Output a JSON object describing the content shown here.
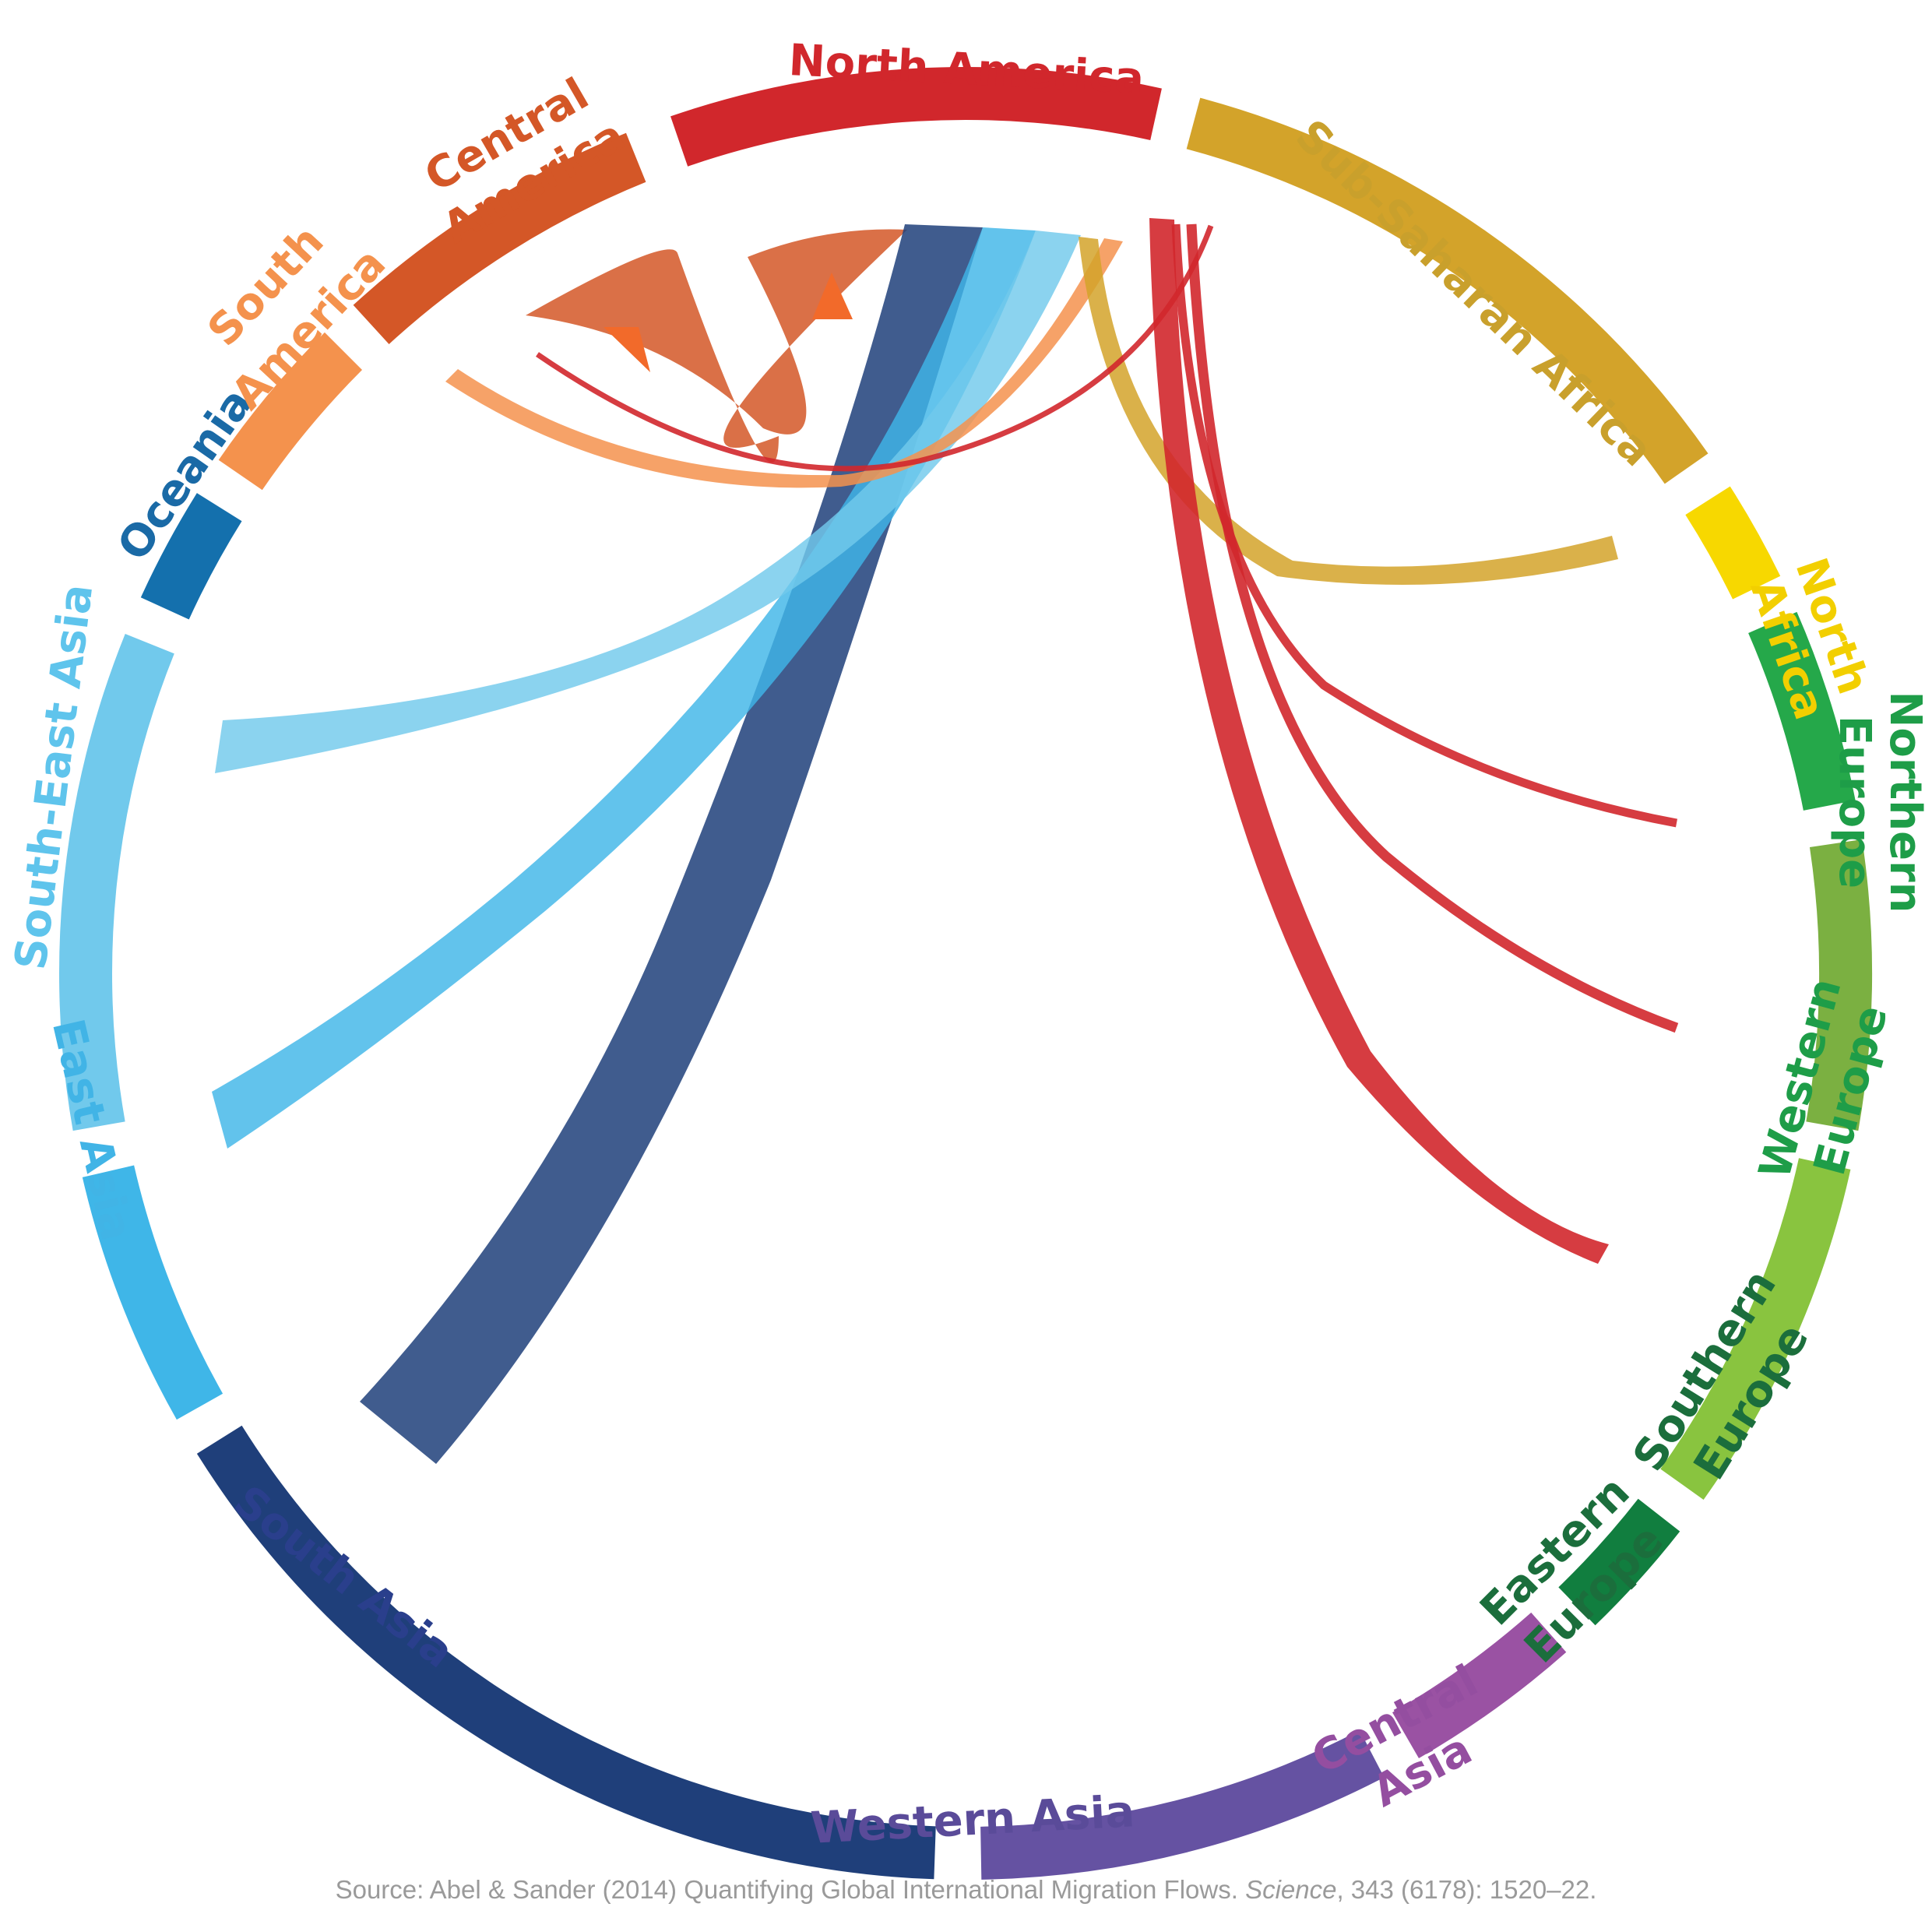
{
  "diagram": {
    "type": "chord",
    "regions": [
      {
        "id": "north-america",
        "label": "North America",
        "color": "#d1272c"
      },
      {
        "id": "sub-saharan-africa",
        "label": "Sub-Saharan Africa",
        "color": "#d3a32a"
      },
      {
        "id": "north-africa",
        "label": "North Africa",
        "color": "#f7d800"
      },
      {
        "id": "northern-europe",
        "label": "Northern Europe",
        "color": "#25a84a"
      },
      {
        "id": "western-europe",
        "label": "Western Europe",
        "color": "#7bb041"
      },
      {
        "id": "southern-europe",
        "label": "Southern Europe",
        "color": "#89c43f"
      },
      {
        "id": "eastern-europe",
        "label": "Eastern Europe",
        "color": "#117e3f"
      },
      {
        "id": "central-asia",
        "label": "Central Asia",
        "color": "#9a52a3"
      },
      {
        "id": "western-asia",
        "label": "Western Asia",
        "color": "#6552a2"
      },
      {
        "id": "south-asia",
        "label": "South Asia",
        "color": "#1f3f7a"
      },
      {
        "id": "east-asia",
        "label": "East Asia",
        "color": "#3fb6e8"
      },
      {
        "id": "south-east-asia",
        "label": "South-East Asia",
        "color": "#71c9ec"
      },
      {
        "id": "oceania",
        "label": "Oceania",
        "color": "#1470ad"
      },
      {
        "id": "south-america",
        "label": "South America",
        "color": "#f4924d"
      },
      {
        "id": "central-america",
        "label": "Central America",
        "color": "#d45727"
      }
    ],
    "label_colors": {
      "north-america": "#d1272c",
      "sub-saharan-africa": "#c9a02c",
      "north-africa": "#f2cf00",
      "northern-europe": "#1e9d48",
      "western-europe": "#1e9d48",
      "southern-europe": "#1b6e3c",
      "eastern-europe": "#1b6e3c",
      "central-asia": "#944ea0",
      "western-asia": "#5a4b99",
      "south-asia": "#2a3f8c",
      "east-asia": "#41b4e6",
      "south-east-asia": "#5fc4ec",
      "oceania": "#1a6aa6",
      "south-america": "#f4924d",
      "central-america": "#d45727"
    },
    "flows": [
      {
        "from": "Central America",
        "to": "North America",
        "color": "#d45727"
      },
      {
        "from": "South Asia",
        "to": "North America",
        "color": "#1f3f7a"
      },
      {
        "from": "East Asia",
        "to": "North America",
        "color": "#3fb6e8"
      },
      {
        "from": "South-East Asia",
        "to": "North America",
        "color": "#71c9ec"
      },
      {
        "from": "South America",
        "to": "North America",
        "color": "#f4924d"
      },
      {
        "from": "Sub-Saharan Africa",
        "to": "North America",
        "color": "#d3a32a"
      },
      {
        "from": "North America",
        "to": "Central America",
        "color": "#d1272c"
      },
      {
        "from": "North America",
        "to": "Northern Europe",
        "color": "#d1272c"
      },
      {
        "from": "North America",
        "to": "Western Europe",
        "color": "#d1272c"
      },
      {
        "from": "North America",
        "to": "Southern Europe",
        "color": "#d1272c"
      }
    ]
  },
  "labels": {
    "north_america": "North America",
    "sub_saharan_africa": "Sub-Saharan Africa",
    "north_africa_1": "North",
    "north_africa_2": "Africa",
    "northern_europe_1": "Northern",
    "northern_europe_2": "Europe",
    "western_europe_1": "Western",
    "western_europe_2": "Europe",
    "southern_europe_1": "Southern",
    "southern_europe_2": "Europe",
    "eastern_europe_1": "Eastern",
    "eastern_europe_2": "Europe",
    "central_asia_1": "Central",
    "central_asia_2": "Asia",
    "western_asia": "Western Asia",
    "south_asia": "South Asia",
    "east_asia": "East Asia",
    "south_east_asia": "South-East Asia",
    "oceania": "Oceania",
    "south_america_1": "South",
    "south_america_2": "America",
    "central_america_1": "Central",
    "central_america_2": "America"
  },
  "source": {
    "prefix": "Source: Abel & Sander (2014) Quantifying Global International Migration Flows. ",
    "journal": "Science",
    "suffix": ", 343 (6178): 1520–22."
  }
}
